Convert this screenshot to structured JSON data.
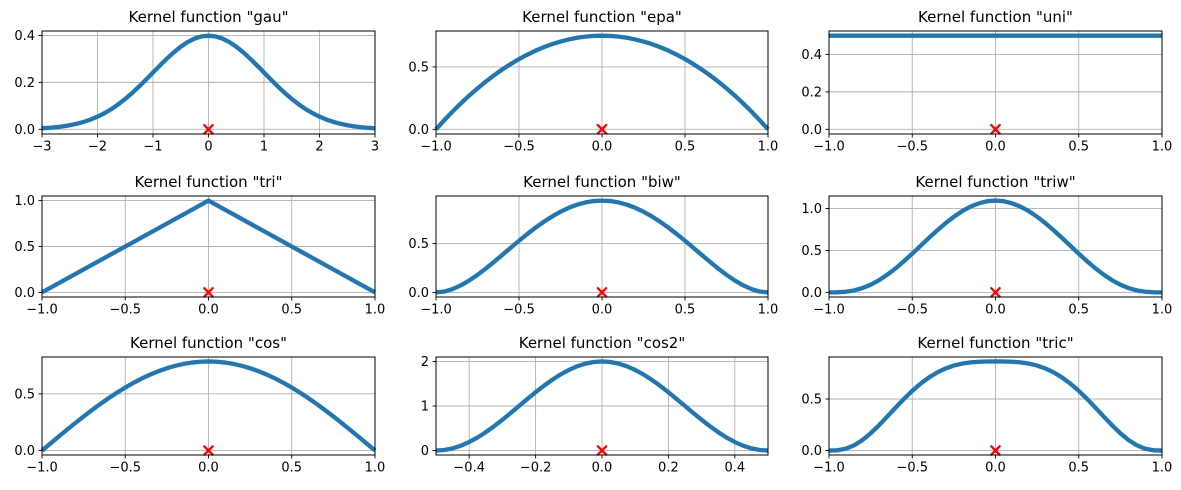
{
  "figure": {
    "background": "#ffffff",
    "grid": true,
    "legend": false
  },
  "styles": {
    "line_color": "#1f77b4",
    "line_width": 4.3,
    "marker_color": "#ff0000",
    "grid_color": "#b0b0b0",
    "spine_color": "#000000",
    "text_color": "#000000"
  },
  "chart_data": [
    {
      "id": "gau",
      "type": "line",
      "title": "Kernel function \"gau\"",
      "xlim": [
        -3,
        3
      ],
      "ylim": [
        -0.0199,
        0.4189
      ],
      "xticks": {
        "values": [
          -3,
          -2,
          -1,
          0,
          1,
          2,
          3
        ],
        "labels": [
          "−3",
          "−2",
          "−1",
          "0",
          "1",
          "2",
          "3"
        ]
      },
      "yticks": {
        "values": [
          0,
          0.2,
          0.4
        ],
        "labels": [
          "0.0",
          "0.2",
          "0.4"
        ]
      },
      "x": [
        -3,
        -2.875,
        -2.75,
        -2.625,
        -2.5,
        -2.375,
        -2.25,
        -2.125,
        -2,
        -1.875,
        -1.75,
        -1.625,
        -1.5,
        -1.375,
        -1.25,
        -1.125,
        -1,
        -0.875,
        -0.75,
        -0.625,
        -0.5,
        -0.375,
        -0.25,
        -0.125,
        0,
        0.125,
        0.25,
        0.375,
        0.5,
        0.625,
        0.75,
        0.875,
        1,
        1.125,
        1.25,
        1.375,
        1.5,
        1.625,
        1.75,
        1.875,
        2,
        2.125,
        2.25,
        2.375,
        2.5,
        2.625,
        2.75,
        2.875,
        3
      ],
      "y": [
        0.0044,
        0.0064,
        0.0091,
        0.0127,
        0.0175,
        0.0238,
        0.0317,
        0.0417,
        0.054,
        0.0688,
        0.0862,
        0.1065,
        0.1295,
        0.155,
        0.1826,
        0.2119,
        0.242,
        0.2721,
        0.3011,
        0.3282,
        0.3521,
        0.3719,
        0.3867,
        0.3958,
        0.3989,
        0.3958,
        0.3867,
        0.3719,
        0.3521,
        0.3282,
        0.3011,
        0.2721,
        0.242,
        0.2119,
        0.1826,
        0.155,
        0.1295,
        0.1065,
        0.0862,
        0.0688,
        0.054,
        0.0417,
        0.0317,
        0.0238,
        0.0175,
        0.0127,
        0.0091,
        0.0064,
        0.0044
      ],
      "marker": {
        "x": 0,
        "y": 0,
        "symbol": "x"
      }
    },
    {
      "id": "epa",
      "type": "line",
      "title": "Kernel function \"epa\"",
      "xlim": [
        -1,
        1
      ],
      "ylim": [
        -0.0375,
        0.7875
      ],
      "xticks": {
        "values": [
          -1,
          -0.5,
          0,
          0.5,
          1
        ],
        "labels": [
          "−1.0",
          "−0.5",
          "0.0",
          "0.5",
          "1.0"
        ]
      },
      "yticks": {
        "values": [
          0,
          0.5
        ],
        "labels": [
          "0.0",
          "0.5"
        ]
      },
      "x": [
        -1,
        -0.95,
        -0.9,
        -0.85,
        -0.8,
        -0.75,
        -0.7,
        -0.65,
        -0.6,
        -0.55,
        -0.5,
        -0.45,
        -0.4,
        -0.35,
        -0.3,
        -0.25,
        -0.2,
        -0.15,
        -0.1,
        -0.05,
        0,
        0.05,
        0.1,
        0.15,
        0.2,
        0.25,
        0.3,
        0.35,
        0.4,
        0.45,
        0.5,
        0.55,
        0.6,
        0.65,
        0.7,
        0.75,
        0.8,
        0.85,
        0.9,
        0.95,
        1
      ],
      "y": [
        0,
        0.0731,
        0.1425,
        0.2081,
        0.27,
        0.3281,
        0.3825,
        0.4331,
        0.48,
        0.5231,
        0.5625,
        0.5981,
        0.63,
        0.6581,
        0.6825,
        0.7031,
        0.72,
        0.7331,
        0.7425,
        0.7481,
        0.75,
        0.7481,
        0.7425,
        0.7331,
        0.72,
        0.7031,
        0.6825,
        0.6581,
        0.63,
        0.5981,
        0.5625,
        0.5231,
        0.48,
        0.4331,
        0.3825,
        0.3281,
        0.27,
        0.2081,
        0.1425,
        0.0731,
        0
      ],
      "marker": {
        "x": 0,
        "y": 0,
        "symbol": "x"
      }
    },
    {
      "id": "uni",
      "type": "line",
      "title": "Kernel function \"uni\"",
      "xlim": [
        -1,
        1
      ],
      "ylim": [
        -0.025,
        0.525
      ],
      "xticks": {
        "values": [
          -1,
          -0.5,
          0,
          0.5,
          1
        ],
        "labels": [
          "−1.0",
          "−0.5",
          "0.0",
          "0.5",
          "1.0"
        ]
      },
      "yticks": {
        "values": [
          0,
          0.2,
          0.4
        ],
        "labels": [
          "0.0",
          "0.2",
          "0.4"
        ]
      },
      "x": [
        -1,
        1
      ],
      "y": [
        0.5,
        0.5
      ],
      "marker": {
        "x": 0,
        "y": 0,
        "symbol": "x"
      }
    },
    {
      "id": "tri",
      "type": "line",
      "title": "Kernel function \"tri\"",
      "xlim": [
        -1,
        1
      ],
      "ylim": [
        -0.05,
        1.05
      ],
      "xticks": {
        "values": [
          -1,
          -0.5,
          0,
          0.5,
          1
        ],
        "labels": [
          "−1.0",
          "−0.5",
          "0.0",
          "0.5",
          "1.0"
        ]
      },
      "yticks": {
        "values": [
          0,
          0.5,
          1
        ],
        "labels": [
          "0.0",
          "0.5",
          "1.0"
        ]
      },
      "x": [
        -1,
        0,
        1
      ],
      "y": [
        0,
        1,
        0
      ],
      "marker": {
        "x": 0,
        "y": 0,
        "symbol": "x"
      }
    },
    {
      "id": "biw",
      "type": "line",
      "title": "Kernel function \"biw\"",
      "xlim": [
        -1,
        1
      ],
      "ylim": [
        -0.0469,
        0.9844
      ],
      "xticks": {
        "values": [
          -1,
          -0.5,
          0,
          0.5,
          1
        ],
        "labels": [
          "−1.0",
          "−0.5",
          "0.0",
          "0.5",
          "1.0"
        ]
      },
      "yticks": {
        "values": [
          0,
          0.5
        ],
        "labels": [
          "0.0",
          "0.5"
        ]
      },
      "x": [
        -1,
        -0.95,
        -0.9,
        -0.85,
        -0.8,
        -0.75,
        -0.7,
        -0.65,
        -0.6,
        -0.55,
        -0.5,
        -0.45,
        -0.4,
        -0.35,
        -0.3,
        -0.25,
        -0.2,
        -0.15,
        -0.1,
        -0.05,
        0,
        0.05,
        0.1,
        0.15,
        0.2,
        0.25,
        0.3,
        0.35,
        0.4,
        0.45,
        0.5,
        0.55,
        0.6,
        0.65,
        0.7,
        0.75,
        0.8,
        0.85,
        0.9,
        0.95,
        1
      ],
      "y": [
        0,
        0.0089,
        0.0338,
        0.0722,
        0.1215,
        0.1794,
        0.2438,
        0.3127,
        0.384,
        0.4561,
        0.5273,
        0.5963,
        0.6615,
        0.7219,
        0.7763,
        0.824,
        0.864,
        0.8958,
        0.9188,
        0.9328,
        0.9375,
        0.9328,
        0.9188,
        0.8958,
        0.864,
        0.824,
        0.7763,
        0.7219,
        0.6615,
        0.5963,
        0.5273,
        0.4561,
        0.384,
        0.3127,
        0.2438,
        0.1794,
        0.1215,
        0.0722,
        0.0338,
        0.0089,
        0
      ],
      "marker": {
        "x": 0,
        "y": 0,
        "symbol": "x"
      }
    },
    {
      "id": "triw",
      "type": "line",
      "title": "Kernel function \"triw\"",
      "xlim": [
        -1,
        1
      ],
      "ylim": [
        -0.0547,
        1.1484
      ],
      "xticks": {
        "values": [
          -1,
          -0.5,
          0,
          0.5,
          1
        ],
        "labels": [
          "−1.0",
          "−0.5",
          "0.0",
          "0.5",
          "1.0"
        ]
      },
      "yticks": {
        "values": [
          0,
          0.5,
          1
        ],
        "labels": [
          "0.0",
          "0.5",
          "1.0"
        ]
      },
      "x": [
        -1,
        -0.95,
        -0.9,
        -0.85,
        -0.8,
        -0.75,
        -0.7,
        -0.65,
        -0.6,
        -0.55,
        -0.5,
        -0.45,
        -0.4,
        -0.35,
        -0.3,
        -0.25,
        -0.2,
        -0.15,
        -0.1,
        -0.05,
        0,
        0.05,
        0.1,
        0.15,
        0.2,
        0.25,
        0.3,
        0.35,
        0.4,
        0.45,
        0.5,
        0.55,
        0.6,
        0.65,
        0.7,
        0.75,
        0.8,
        0.85,
        0.9,
        0.95,
        1
      ],
      "y": [
        0,
        0.001,
        0.0075,
        0.0234,
        0.051,
        0.0916,
        0.1451,
        0.2107,
        0.2867,
        0.3712,
        0.4614,
        0.5548,
        0.6483,
        0.739,
        0.8242,
        0.9012,
        0.9677,
        1.0216,
        1.0613,
        1.0856,
        1.0938,
        1.0856,
        1.0613,
        1.0216,
        0.9677,
        0.9012,
        0.8242,
        0.739,
        0.6483,
        0.5548,
        0.4614,
        0.3712,
        0.2867,
        0.2107,
        0.1451,
        0.0916,
        0.051,
        0.0234,
        0.0075,
        0.001,
        0
      ],
      "marker": {
        "x": 0,
        "y": 0,
        "symbol": "x"
      }
    },
    {
      "id": "cos",
      "type": "line",
      "title": "Kernel function \"cos\"",
      "xlim": [
        -1,
        1
      ],
      "ylim": [
        -0.0393,
        0.8247
      ],
      "xticks": {
        "values": [
          -1,
          -0.5,
          0,
          0.5,
          1
        ],
        "labels": [
          "−1.0",
          "−0.5",
          "0.0",
          "0.5",
          "1.0"
        ]
      },
      "yticks": {
        "values": [
          0,
          0.5
        ],
        "labels": [
          "0.0",
          "0.5"
        ]
      },
      "x": [
        -1,
        -0.95,
        -0.9,
        -0.85,
        -0.8,
        -0.75,
        -0.7,
        -0.65,
        -0.6,
        -0.55,
        -0.5,
        -0.45,
        -0.4,
        -0.35,
        -0.3,
        -0.25,
        -0.2,
        -0.15,
        -0.1,
        -0.05,
        0,
        0.05,
        0.1,
        0.15,
        0.2,
        0.25,
        0.3,
        0.35,
        0.4,
        0.45,
        0.5,
        0.55,
        0.6,
        0.65,
        0.7,
        0.75,
        0.8,
        0.85,
        0.9,
        0.95,
        1
      ],
      "y": [
        0,
        0.0616,
        0.1229,
        0.1833,
        0.2427,
        0.3006,
        0.3566,
        0.4104,
        0.4616,
        0.5101,
        0.5554,
        0.5972,
        0.6354,
        0.6697,
        0.6998,
        0.7256,
        0.747,
        0.7637,
        0.7757,
        0.783,
        0.7854,
        0.783,
        0.7757,
        0.7637,
        0.747,
        0.7256,
        0.6998,
        0.6697,
        0.6354,
        0.5972,
        0.5554,
        0.5101,
        0.4616,
        0.4104,
        0.3566,
        0.3006,
        0.2427,
        0.1833,
        0.1229,
        0.0616,
        0
      ],
      "marker": {
        "x": 0,
        "y": 0,
        "symbol": "x"
      }
    },
    {
      "id": "cos2",
      "type": "line",
      "title": "Kernel function \"cos2\"",
      "xlim": [
        -0.5,
        0.5
      ],
      "ylim": [
        -0.1,
        2.1
      ],
      "xticks": {
        "values": [
          -0.4,
          -0.2,
          0,
          0.2,
          0.4
        ],
        "labels": [
          "−0.4",
          "−0.2",
          "0.0",
          "0.2",
          "0.4"
        ]
      },
      "yticks": {
        "values": [
          0,
          1,
          2
        ],
        "labels": [
          "0",
          "1",
          "2"
        ]
      },
      "x": [
        -0.5,
        -0.475,
        -0.45,
        -0.425,
        -0.4,
        -0.375,
        -0.35,
        -0.325,
        -0.3,
        -0.275,
        -0.25,
        -0.225,
        -0.2,
        -0.175,
        -0.15,
        -0.125,
        -0.1,
        -0.075,
        -0.05,
        -0.025,
        0,
        0.025,
        0.05,
        0.075,
        0.1,
        0.125,
        0.15,
        0.175,
        0.2,
        0.225,
        0.25,
        0.275,
        0.3,
        0.325,
        0.35,
        0.375,
        0.4,
        0.425,
        0.45,
        0.475,
        0.5
      ],
      "y": [
        0,
        0.0123,
        0.0489,
        0.109,
        0.191,
        0.2929,
        0.4122,
        0.546,
        0.691,
        0.8436,
        1,
        1.1564,
        1.309,
        1.454,
        1.5878,
        1.7071,
        1.809,
        1.891,
        1.9511,
        1.9877,
        2,
        1.9877,
        1.9511,
        1.891,
        1.809,
        1.7071,
        1.5878,
        1.454,
        1.309,
        1.1564,
        1,
        0.8436,
        0.691,
        0.546,
        0.4122,
        0.2929,
        0.191,
        0.109,
        0.0489,
        0.0123,
        0
      ],
      "marker": {
        "x": 0,
        "y": 0,
        "symbol": "x"
      }
    },
    {
      "id": "tric",
      "type": "line",
      "title": "Kernel function \"tric\"",
      "xlim": [
        -1,
        1
      ],
      "ylim": [
        -0.0432,
        0.9074
      ],
      "xticks": {
        "values": [
          -1,
          -0.5,
          0,
          0.5,
          1
        ],
        "labels": [
          "−1.0",
          "−0.5",
          "0.0",
          "0.5",
          "1.0"
        ]
      },
      "yticks": {
        "values": [
          0,
          0.5
        ],
        "labels": [
          "0.0",
          "0.5"
        ]
      },
      "x": [
        -1,
        -0.95,
        -0.9,
        -0.85,
        -0.8,
        -0.75,
        -0.7,
        -0.65,
        -0.6,
        -0.55,
        -0.5,
        -0.45,
        -0.4,
        -0.35,
        -0.3,
        -0.25,
        -0.2,
        -0.15,
        -0.1,
        -0.05,
        0,
        0.05,
        0.1,
        0.15,
        0.2,
        0.25,
        0.3,
        0.35,
        0.4,
        0.45,
        0.5,
        0.55,
        0.6,
        0.65,
        0.7,
        0.75,
        0.8,
        0.85,
        0.9,
        0.95,
        1
      ],
      "y": [
        0,
        0.0025,
        0.0172,
        0.0497,
        0.1004,
        0.167,
        0.2451,
        0.3298,
        0.4164,
        0.5006,
        0.5789,
        0.6488,
        0.7087,
        0.7578,
        0.7961,
        0.8243,
        0.8436,
        0.8555,
        0.8616,
        0.8639,
        0.8642,
        0.8639,
        0.8616,
        0.8555,
        0.8436,
        0.8243,
        0.7961,
        0.7578,
        0.7087,
        0.6488,
        0.5789,
        0.5006,
        0.4164,
        0.3298,
        0.2451,
        0.167,
        0.1004,
        0.0497,
        0.0172,
        0.0025,
        0
      ],
      "marker": {
        "x": 0,
        "y": 0,
        "symbol": "x"
      }
    }
  ]
}
